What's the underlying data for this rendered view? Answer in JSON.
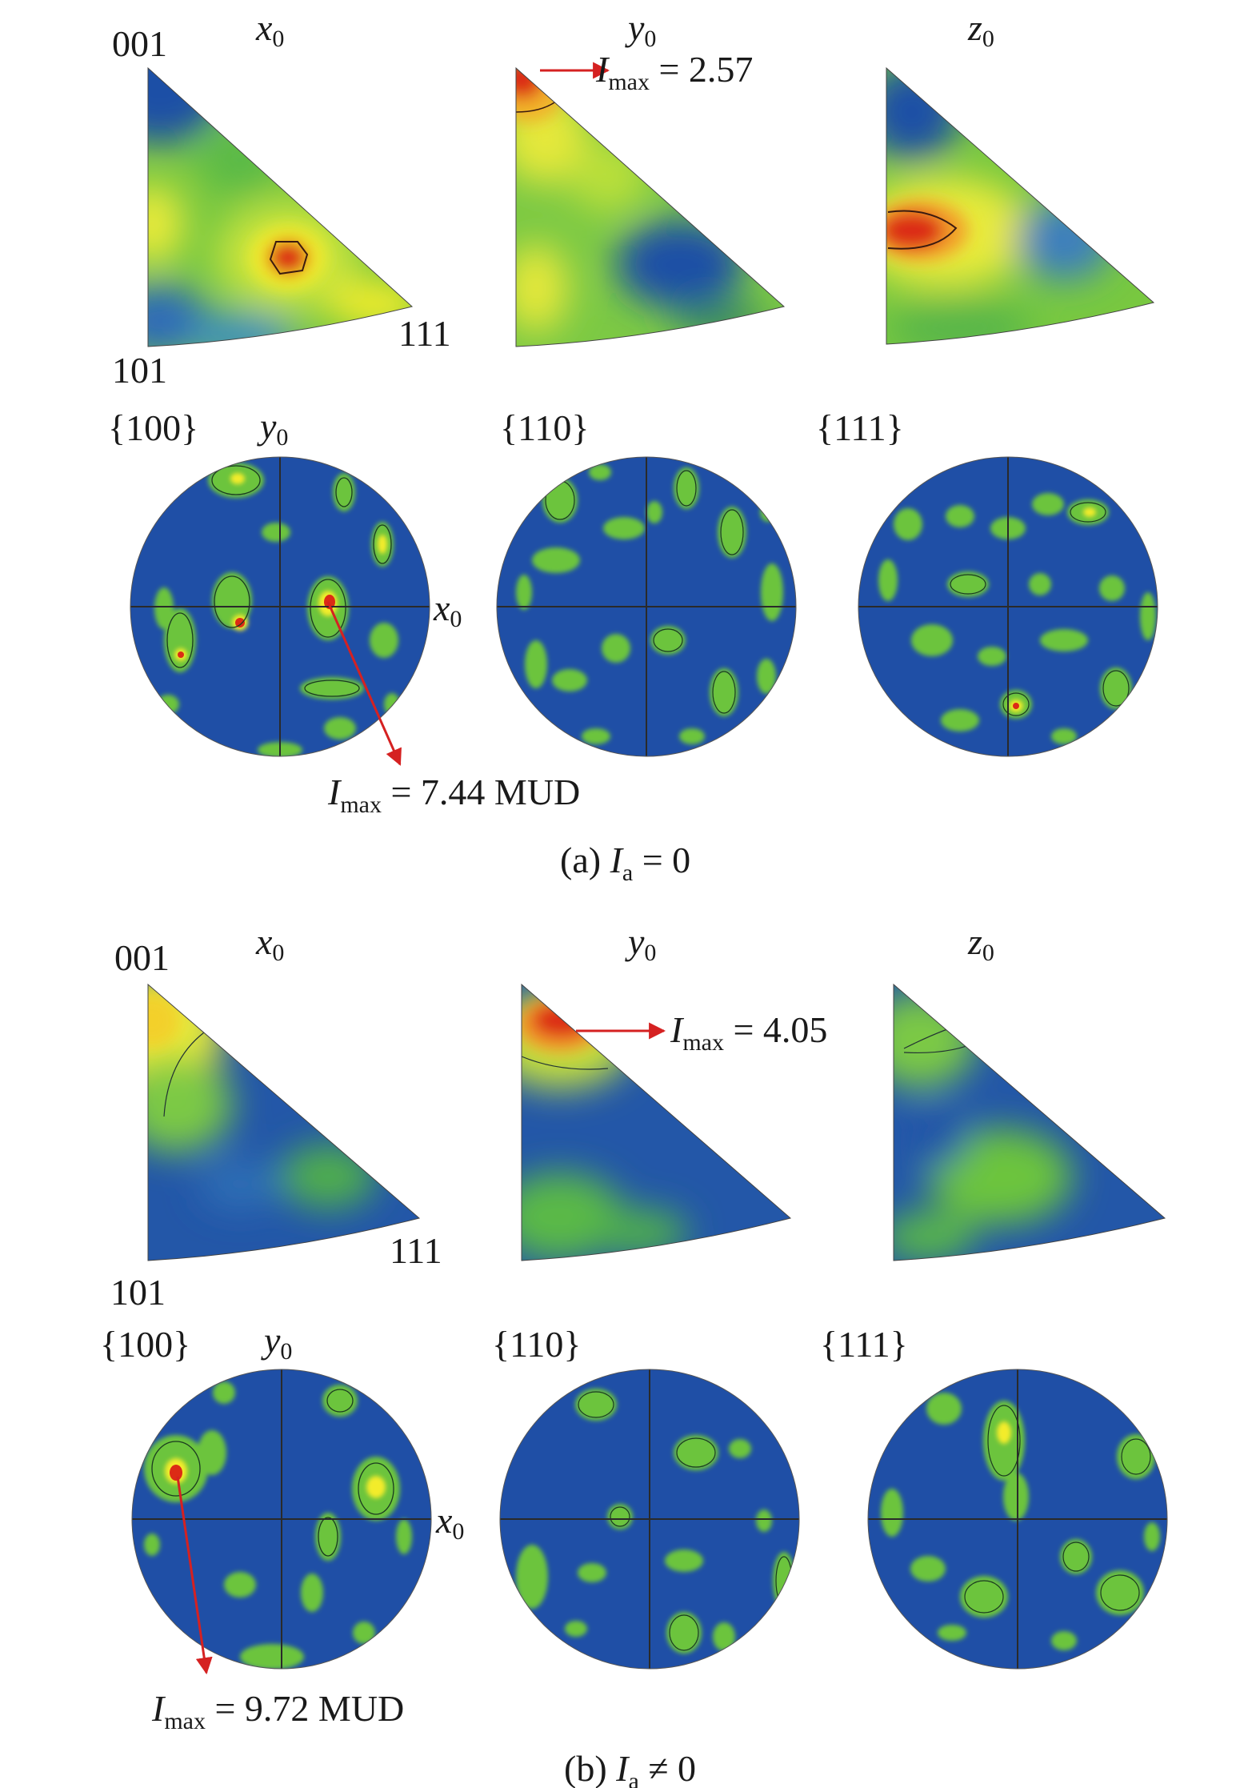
{
  "colors": {
    "background_low": "#1f4fa6",
    "mid_green": "#6cc43c",
    "yellow": "#f3ec2a",
    "peak_red": "#dc2b15",
    "arrow": "#d52121",
    "axis_line": "#2a2a2a"
  },
  "panels": [
    {
      "id": "a",
      "caption": {
        "prefix": "(a) ",
        "var": "I",
        "sub": "a",
        "rest": " = 0"
      },
      "ipf": {
        "corner_labels": {
          "top": "001",
          "bottom_left": "101",
          "bottom_right": "111"
        },
        "maps": [
          {
            "axis": "x",
            "axis_sub": "0"
          },
          {
            "axis": "y",
            "axis_sub": "0",
            "annotation": {
              "var": "I",
              "sub": "max",
              "rest": " = 2.57"
            }
          },
          {
            "axis": "z",
            "axis_sub": "0"
          }
        ]
      },
      "pole_figures": {
        "axis_y": {
          "var": "y",
          "sub": "0"
        },
        "axis_x": {
          "var": "x",
          "sub": "0"
        },
        "maps": [
          {
            "label": "{100}",
            "annotation": {
              "var": "I",
              "sub": "max",
              "rest": " = 7.44 MUD"
            }
          },
          {
            "label": "{110}"
          },
          {
            "label": "{111}"
          }
        ]
      }
    },
    {
      "id": "b",
      "caption": {
        "prefix": "(b) ",
        "var": "I",
        "sub": "a",
        "rest": " ≠ 0"
      },
      "ipf": {
        "corner_labels": {
          "top": "001",
          "bottom_left": "101",
          "bottom_right": "111"
        },
        "maps": [
          {
            "axis": "x",
            "axis_sub": "0"
          },
          {
            "axis": "y",
            "axis_sub": "0",
            "annotation": {
              "var": "I",
              "sub": "max",
              "rest": " = 4.05"
            }
          },
          {
            "axis": "z",
            "axis_sub": "0"
          }
        ]
      },
      "pole_figures": {
        "axis_y": {
          "var": "y",
          "sub": "0"
        },
        "axis_x": {
          "var": "x",
          "sub": "0"
        },
        "maps": [
          {
            "label": "{100}",
            "annotation": {
              "var": "I",
              "sub": "max",
              "rest": " = 9.72 MUD"
            }
          },
          {
            "label": "{110}"
          },
          {
            "label": "{111}"
          }
        ]
      }
    }
  ]
}
